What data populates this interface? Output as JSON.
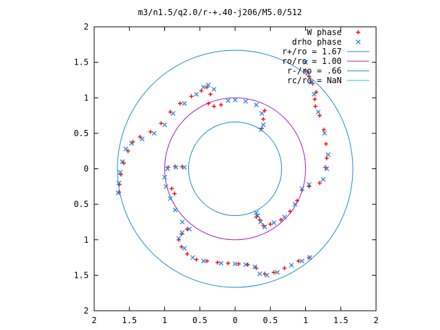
{
  "chart_data": {
    "type": "scatter",
    "title": "m3/n1.5/q2.0/r-+.40-j206/M5.0/512",
    "xlabel": "",
    "ylabel": "",
    "xlim": [
      -2,
      2
    ],
    "ylim": [
      -2,
      2
    ],
    "x_ticks": [
      "2",
      "1.5",
      "1",
      "0.5",
      "0",
      "0.5",
      "1",
      "1.5",
      "2"
    ],
    "y_ticks": [
      "2",
      "1.5",
      "1",
      "0.5",
      "0",
      "0.5",
      "1",
      "1.5",
      "2"
    ],
    "x_tick_values": [
      -2,
      -1.5,
      -1,
      -0.5,
      0,
      0.5,
      1,
      1.5,
      2
    ],
    "y_tick_values": [
      2,
      1.5,
      1,
      0.5,
      0,
      -0.5,
      -1,
      -1.5,
      -2
    ],
    "grid": false,
    "legend_position": "top-right",
    "series": [
      {
        "name": "W phase",
        "kind": "points",
        "marker": "plus",
        "color": "#ff0000",
        "points": [
          [
            -1.65,
            -0.33
          ],
          [
            -1.64,
            -0.22
          ],
          [
            -1.62,
            -0.08
          ],
          [
            -1.58,
            0.08
          ],
          [
            -1.52,
            0.25
          ],
          [
            -1.45,
            0.38
          ],
          [
            -1.35,
            0.45
          ],
          [
            -1.2,
            0.52
          ],
          [
            -1.05,
            0.64
          ],
          [
            -0.92,
            0.8
          ],
          [
            -0.78,
            0.92
          ],
          [
            -0.62,
            1.02
          ],
          [
            -0.48,
            1.1
          ],
          [
            -0.4,
            1.15
          ],
          [
            -0.35,
            1.05
          ],
          [
            -0.38,
            0.92
          ],
          [
            -0.3,
            0.88
          ],
          [
            -0.2,
            0.9
          ],
          [
            0.38,
            0.57
          ],
          [
            0.4,
            0.7
          ],
          [
            0.42,
            0.82
          ],
          [
            1.0,
            1.38
          ],
          [
            1.05,
            1.3
          ],
          [
            1.1,
            1.2
          ],
          [
            1.15,
            1.08
          ],
          [
            1.13,
            0.98
          ],
          [
            1.14,
            0.88
          ],
          [
            1.2,
            0.75
          ],
          [
            1.26,
            0.55
          ],
          [
            1.29,
            0.35
          ],
          [
            1.3,
            0.15
          ],
          [
            1.28,
            0.02
          ],
          [
            1.2,
            -0.2
          ],
          [
            1.05,
            -0.25
          ],
          [
            0.95,
            -0.3
          ],
          [
            0.88,
            -0.45
          ],
          [
            0.78,
            -0.6
          ],
          [
            0.65,
            -0.72
          ],
          [
            0.5,
            -0.78
          ],
          [
            0.4,
            -0.8
          ],
          [
            0.35,
            -0.72
          ],
          [
            0.3,
            -0.68
          ],
          [
            1.05,
            -1.25
          ],
          [
            0.9,
            -1.3
          ],
          [
            0.7,
            -1.4
          ],
          [
            0.55,
            -1.46
          ],
          [
            0.42,
            -1.48
          ],
          [
            0.3,
            -1.4
          ],
          [
            0.18,
            -1.35
          ],
          [
            0.05,
            -1.34
          ],
          [
            -0.1,
            -1.33
          ],
          [
            -0.25,
            -1.32
          ],
          [
            -0.4,
            -1.3
          ],
          [
            -0.55,
            -1.28
          ],
          [
            -0.68,
            -1.2
          ],
          [
            -0.76,
            -1.1
          ],
          [
            -0.8,
            -1.0
          ],
          [
            -0.76,
            -0.92
          ],
          [
            -0.68,
            -0.85
          ],
          [
            -0.86,
            -0.35
          ],
          [
            -0.9,
            -0.28
          ],
          [
            -0.95,
            0.02
          ],
          [
            -0.85,
            0.03
          ],
          [
            -0.75,
            0.03
          ]
        ]
      },
      {
        "name": "drho phase",
        "kind": "points",
        "marker": "cross",
        "color": "#2f8ae0",
        "points": [
          [
            -1.66,
            -0.34
          ],
          [
            -1.65,
            -0.2
          ],
          [
            -1.63,
            -0.05
          ],
          [
            -1.6,
            0.1
          ],
          [
            -1.55,
            0.28
          ],
          [
            -1.47,
            0.36
          ],
          [
            -1.32,
            0.42
          ],
          [
            -1.15,
            0.5
          ],
          [
            -1.0,
            0.62
          ],
          [
            -0.88,
            0.78
          ],
          [
            -0.72,
            0.92
          ],
          [
            -0.55,
            1.05
          ],
          [
            -0.45,
            1.15
          ],
          [
            -0.38,
            1.18
          ],
          [
            -0.3,
            1.12
          ],
          [
            -0.1,
            0.96
          ],
          [
            0.0,
            0.97
          ],
          [
            0.15,
            0.95
          ],
          [
            0.3,
            0.9
          ],
          [
            0.38,
            0.78
          ],
          [
            0.4,
            0.62
          ],
          [
            0.37,
            0.55
          ],
          [
            1.0,
            1.5
          ],
          [
            1.03,
            1.35
          ],
          [
            1.08,
            1.22
          ],
          [
            1.12,
            1.05
          ],
          [
            1.18,
            0.8
          ],
          [
            1.27,
            0.5
          ],
          [
            1.32,
            0.2
          ],
          [
            1.3,
            0.0
          ],
          [
            1.25,
            -0.15
          ],
          [
            1.05,
            -0.22
          ],
          [
            0.95,
            -0.28
          ],
          [
            0.85,
            -0.5
          ],
          [
            0.7,
            -0.68
          ],
          [
            0.55,
            -0.76
          ],
          [
            0.42,
            -0.82
          ],
          [
            0.36,
            -0.75
          ],
          [
            0.32,
            -0.66
          ],
          [
            0.3,
            -0.62
          ],
          [
            1.06,
            -1.25
          ],
          [
            0.95,
            -1.3
          ],
          [
            0.8,
            -1.36
          ],
          [
            0.6,
            -1.46
          ],
          [
            0.45,
            -1.5
          ],
          [
            0.35,
            -1.48
          ],
          [
            0.28,
            -1.38
          ],
          [
            0.15,
            -1.35
          ],
          [
            0.0,
            -1.34
          ],
          [
            -0.2,
            -1.33
          ],
          [
            -0.45,
            -1.3
          ],
          [
            -0.6,
            -1.25
          ],
          [
            -0.72,
            -1.12
          ],
          [
            -0.8,
            -0.98
          ],
          [
            -0.75,
            -0.9
          ],
          [
            -0.65,
            -0.85
          ],
          [
            -0.75,
            -0.75
          ],
          [
            -0.85,
            -0.58
          ],
          [
            -0.92,
            -0.42
          ],
          [
            -0.98,
            -0.25
          ],
          [
            -1.0,
            -0.12
          ],
          [
            -0.96,
            0.0
          ],
          [
            -0.84,
            0.02
          ],
          [
            -0.72,
            0.02
          ]
        ]
      },
      {
        "name": "r+/ro = 1.67",
        "kind": "circle",
        "radius": 1.67,
        "color": "#1a8ad0"
      },
      {
        "name": "ro/ro = 1.00",
        "kind": "circle",
        "radius": 1.0,
        "color": "#a020c0"
      },
      {
        "name": "r-/ro = .66",
        "kind": "circle",
        "radius": 0.66,
        "color": "#1a8ad0"
      },
      {
        "name": "rc/ro = NaN",
        "kind": "circle",
        "radius": null,
        "color": "#20c0e0"
      }
    ]
  }
}
